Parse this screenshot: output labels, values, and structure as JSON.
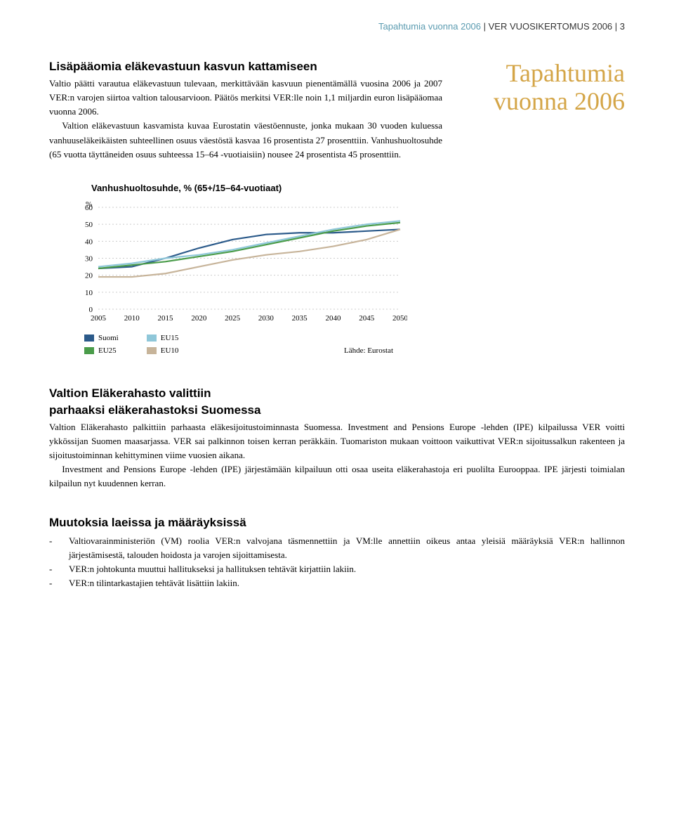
{
  "header": {
    "left_blue": "Tapahtumia vuonna 2006",
    "sep": " | ",
    "mid": "VER VUOSIKERTOMUS 2006",
    "page": "3"
  },
  "side_title_1": "Tapahtumia",
  "side_title_2": "vuonna 2006",
  "section1": {
    "title": "Lisäpääomia eläkevastuun kasvun kattamiseen",
    "p1": "Valtio päätti varautua eläkevastuun tulevaan, merkittävään kasvuun pienentämällä vuosina 2006 ja 2007 VER:n varojen siirtoa valtion talousarvioon. Päätös merkitsi VER:lle noin 1,1 miljardin euron lisäpääomaa vuonna 2006.",
    "p2": "Valtion eläkevastuun kasvamista kuvaa Eurostatin väestöennuste, jonka mukaan 30 vuoden kuluessa vanhuuseläkeikäisten suhteellinen osuus väestöstä kasvaa 16 prosentista 27 prosenttiin. Vanhushuoltosuhde (65 vuotta täyttäneiden osuus suhteessa 15–64 -vuotiaisiin) nousee 24 prosentista 45 prosenttiin."
  },
  "chart": {
    "title": "Vanhushuoltosuhde, % (65+/15–64-vuotiaat)",
    "yaxis_unit": "%",
    "years": [
      2005,
      2010,
      2015,
      2020,
      2025,
      2030,
      2035,
      2040,
      2045,
      2050
    ],
    "ylim": [
      0,
      60
    ],
    "ytick_step": 10,
    "series": {
      "suomi": {
        "label": "Suomi",
        "color": "#2b5a8a",
        "values": [
          24,
          25,
          30,
          36,
          41,
          44,
          45,
          45,
          46,
          47
        ]
      },
      "eu25": {
        "label": "EU25",
        "color": "#4a9c4a",
        "values": [
          24,
          26,
          28,
          31,
          34,
          38,
          42,
          46,
          49,
          51
        ]
      },
      "eu15": {
        "label": "EU15",
        "color": "#8fc7d9",
        "values": [
          25,
          27,
          30,
          32,
          35,
          39,
          43,
          47,
          50,
          52
        ]
      },
      "eu10": {
        "label": "EU10",
        "color": "#c7b49a",
        "values": [
          19,
          19,
          21,
          25,
          29,
          32,
          34,
          37,
          41,
          47
        ]
      }
    },
    "grid_color": "#cccccc",
    "axis_color": "#000000",
    "label_fontsize": 11,
    "source": "Lähde: Eurostat"
  },
  "section2": {
    "title1": "Valtion Eläkerahasto valittiin",
    "title2": "parhaaksi eläkerahastoksi Suomessa",
    "p1": "Valtion Eläkerahasto palkittiin parhaasta eläkesijoitustoiminnasta Suomessa. Investment and Pensions Europe -lehden (IPE) kilpailussa VER voitti ykkössijan Suomen maasarjassa. VER sai palkinnon toisen kerran peräkkäin. Tuomariston mukaan voittoon vaikuttivat VER:n sijoitussalkun rakenteen ja sijoitustoiminnan kehittyminen viime vuosien aikana.",
    "p2": "Investment and Pensions Europe -lehden (IPE) järjestämään kilpailuun otti osaa useita eläkerahastoja eri puolilta Eurooppaa. IPE järjesti toimialan kilpailun nyt kuudennen kerran."
  },
  "section3": {
    "title": "Muutoksia laeissa ja määräyksissä",
    "b1": "Valtiovarainministeriön (VM) roolia VER:n valvojana täsmennettiin ja VM:lle annettiin oikeus antaa yleisiä määräyksiä VER:n hallinnon järjestämisestä, talouden hoidosta ja varojen sijoittamisesta.",
    "b2": "VER:n johtokunta muuttui hallitukseksi ja hallituksen tehtävät kirjattiin lakiin.",
    "b3": "VER:n tilintarkastajien tehtävät lisättiin lakiin."
  }
}
